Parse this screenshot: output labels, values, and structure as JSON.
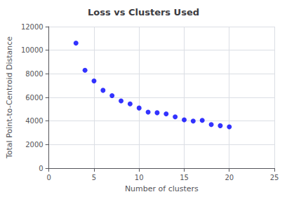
{
  "chart_data": {
    "type": "scatter",
    "title": "Loss vs Clusters Used",
    "xlabel": "Number of clusters",
    "ylabel": "Total Point-to-Centroid Distance",
    "x": [
      3,
      4,
      5,
      6,
      7,
      8,
      9,
      10,
      11,
      12,
      13,
      14,
      15,
      16,
      17,
      18,
      19,
      20
    ],
    "values": [
      10600,
      8300,
      7400,
      6600,
      6150,
      5700,
      5450,
      5100,
      4750,
      4700,
      4600,
      4350,
      4100,
      4000,
      4050,
      3700,
      3600,
      3500
    ],
    "color": "blue",
    "xlim": [
      0,
      25
    ],
    "xticks": [
      0,
      5,
      10,
      15,
      20,
      25
    ],
    "ylim": [
      0,
      12000
    ],
    "yticks": [
      0,
      2000,
      4000,
      6000,
      8000,
      10000,
      12000
    ],
    "grid": true
  }
}
